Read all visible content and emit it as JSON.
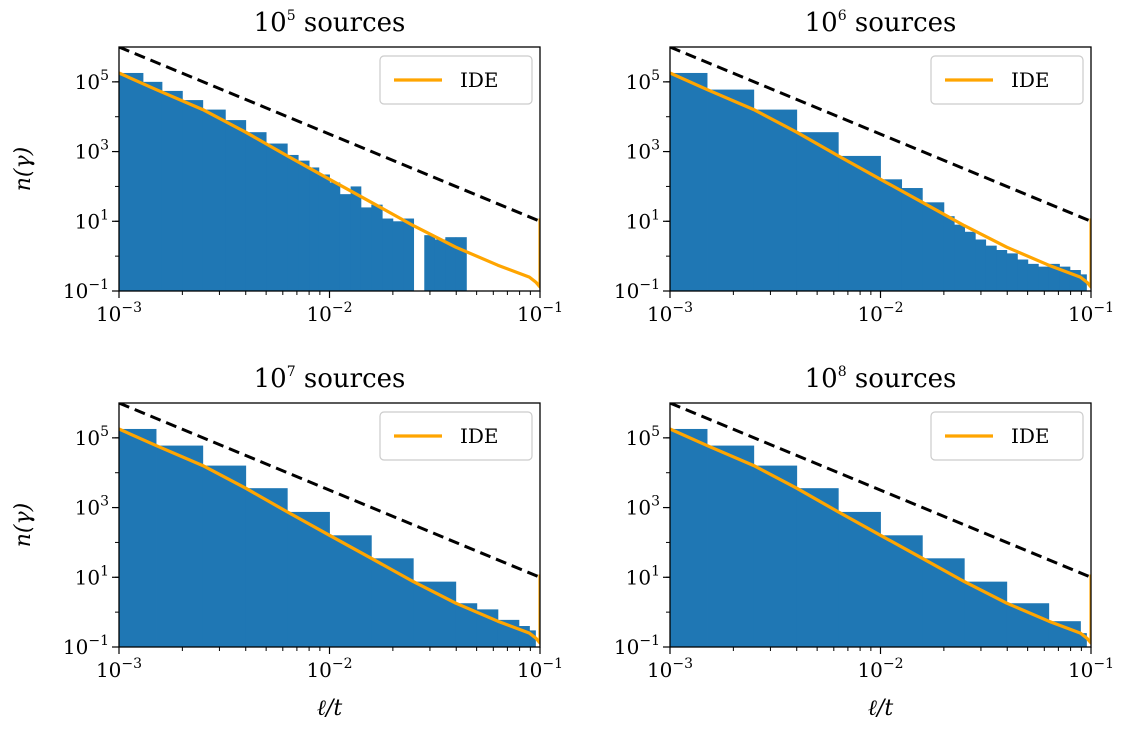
{
  "chart_data": [
    {
      "type": "bar",
      "title": "10^5 sources",
      "title_base": "10",
      "title_exp": "5",
      "title_suffix": "sources",
      "xlabel": "",
      "ylabel": "n(γ)",
      "xscale": "log",
      "yscale": "log",
      "xlim": [
        0.001,
        0.1
      ],
      "ylim": [
        0.1,
        1000000
      ],
      "legend": {
        "placement": "top-right",
        "entries": [
          "IDE"
        ]
      },
      "reference_line": {
        "style": "dashed",
        "color": "#000000",
        "x": [
          0.001,
          0.1
        ],
        "y": [
          1000000,
          10
        ]
      },
      "series": [
        {
          "name": "IDE",
          "kind": "line",
          "color": "#ffa500",
          "x": [
            0.001,
            0.0015,
            0.0025,
            0.004,
            0.0063,
            0.01,
            0.0158,
            0.025,
            0.0398,
            0.063,
            0.0891,
            0.0955,
            0.1,
            0.1
          ],
          "y": [
            180000,
            60000,
            16000,
            3600,
            750,
            160,
            35,
            7.5,
            1.8,
            0.55,
            0.25,
            0.18,
            0.13,
            12
          ]
        },
        {
          "name": "histogram",
          "kind": "bar",
          "color": "#1f77b4",
          "x": [
            0.001,
            0.0013,
            0.0016,
            0.002,
            0.0025,
            0.0032,
            0.004,
            0.005,
            0.0063,
            0.0071,
            0.008,
            0.0089,
            0.01,
            0.0112,
            0.0126,
            0.0141,
            0.0158,
            0.0178,
            0.02,
            0.0224,
            0.0251,
            0.0282,
            0.0316,
            0.0355,
            0.0398,
            0.0447
          ],
          "y": [
            180000,
            100000,
            55000,
            30000,
            16000,
            8000,
            3600,
            1700,
            800,
            550,
            350,
            220,
            130,
            60,
            100,
            25,
            30,
            12,
            10,
            12,
            0,
            4,
            3,
            3.5,
            3.5,
            0
          ]
        }
      ]
    },
    {
      "type": "bar",
      "title": "10^6 sources",
      "title_base": "10",
      "title_exp": "6",
      "title_suffix": "sources",
      "xlabel": "",
      "ylabel": "",
      "xscale": "log",
      "yscale": "log",
      "xlim": [
        0.001,
        0.1
      ],
      "ylim": [
        0.1,
        1000000
      ],
      "legend": {
        "placement": "top-right",
        "entries": [
          "IDE"
        ]
      },
      "reference_line": {
        "style": "dashed",
        "color": "#000000",
        "x": [
          0.001,
          0.1
        ],
        "y": [
          1000000,
          10
        ]
      },
      "series": [
        {
          "name": "IDE",
          "kind": "line",
          "color": "#ffa500",
          "x": [
            0.001,
            0.0015,
            0.0025,
            0.004,
            0.0063,
            0.01,
            0.0158,
            0.025,
            0.0398,
            0.063,
            0.0891,
            0.0955,
            0.1,
            0.1
          ],
          "y": [
            180000,
            60000,
            16000,
            3600,
            750,
            160,
            35,
            7.5,
            1.8,
            0.55,
            0.25,
            0.18,
            0.13,
            12
          ]
        },
        {
          "name": "histogram",
          "kind": "bar",
          "color": "#1f77b4",
          "x": [
            0.001,
            0.0015,
            0.0025,
            0.004,
            0.0063,
            0.01,
            0.0126,
            0.0158,
            0.02,
            0.0224,
            0.0251,
            0.0282,
            0.0316,
            0.0355,
            0.0398,
            0.0447,
            0.0501,
            0.0562,
            0.0631,
            0.0708,
            0.0794,
            0.0891
          ],
          "y": [
            180000,
            60000,
            16000,
            3600,
            750,
            160,
            90,
            35,
            14,
            8,
            5,
            3,
            2,
            1.5,
            1.2,
            0.8,
            0.6,
            0.5,
            0.6,
            0.5,
            0.4,
            0.3
          ]
        }
      ]
    },
    {
      "type": "bar",
      "title": "10^7 sources",
      "title_base": "10",
      "title_exp": "7",
      "title_suffix": "sources",
      "xlabel": "ℓ/t",
      "ylabel": "n(γ)",
      "xscale": "log",
      "yscale": "log",
      "xlim": [
        0.001,
        0.1
      ],
      "ylim": [
        0.1,
        1000000
      ],
      "legend": {
        "placement": "top-right",
        "entries": [
          "IDE"
        ]
      },
      "reference_line": {
        "style": "dashed",
        "color": "#000000",
        "x": [
          0.001,
          0.1
        ],
        "y": [
          1000000,
          10
        ]
      },
      "series": [
        {
          "name": "IDE",
          "kind": "line",
          "color": "#ffa500",
          "x": [
            0.001,
            0.0015,
            0.0025,
            0.004,
            0.0063,
            0.01,
            0.0158,
            0.025,
            0.0398,
            0.063,
            0.0891,
            0.0955,
            0.1,
            0.1
          ],
          "y": [
            180000,
            60000,
            16000,
            3600,
            750,
            160,
            35,
            7.5,
            1.8,
            0.55,
            0.25,
            0.18,
            0.13,
            12
          ]
        },
        {
          "name": "histogram",
          "kind": "bar",
          "color": "#1f77b4",
          "x": [
            0.001,
            0.0015,
            0.0025,
            0.004,
            0.0063,
            0.01,
            0.0158,
            0.025,
            0.0398,
            0.0501,
            0.0631,
            0.0794,
            0.0891
          ],
          "y": [
            180000,
            60000,
            16000,
            3600,
            750,
            160,
            35,
            7.5,
            1.8,
            1.2,
            0.6,
            0.4,
            0.3
          ]
        }
      ]
    },
    {
      "type": "bar",
      "title": "10^8 sources",
      "title_base": "10",
      "title_exp": "8",
      "title_suffix": "sources",
      "xlabel": "ℓ/t",
      "ylabel": "",
      "xscale": "log",
      "yscale": "log",
      "xlim": [
        0.001,
        0.1
      ],
      "ylim": [
        0.1,
        1000000
      ],
      "legend": {
        "placement": "top-right",
        "entries": [
          "IDE"
        ]
      },
      "reference_line": {
        "style": "dashed",
        "color": "#000000",
        "x": [
          0.001,
          0.1
        ],
        "y": [
          1000000,
          10
        ]
      },
      "series": [
        {
          "name": "IDE",
          "kind": "line",
          "color": "#ffa500",
          "x": [
            0.001,
            0.0015,
            0.0025,
            0.004,
            0.0063,
            0.01,
            0.0158,
            0.025,
            0.0398,
            0.063,
            0.0891,
            0.0955,
            0.1,
            0.1
          ],
          "y": [
            180000,
            60000,
            16000,
            3600,
            750,
            160,
            35,
            7.5,
            1.8,
            0.55,
            0.25,
            0.18,
            0.13,
            12
          ]
        },
        {
          "name": "histogram",
          "kind": "bar",
          "color": "#1f77b4",
          "x": [
            0.001,
            0.0015,
            0.0025,
            0.004,
            0.0063,
            0.01,
            0.0158,
            0.025,
            0.0398,
            0.063,
            0.0891
          ],
          "y": [
            180000,
            60000,
            16000,
            3600,
            750,
            160,
            35,
            7.5,
            1.8,
            0.55,
            0.25
          ]
        }
      ]
    }
  ],
  "axes": {
    "x_ticks": [
      {
        "base": "10",
        "exp": "−3",
        "value": 0.001
      },
      {
        "base": "10",
        "exp": "−2",
        "value": 0.01
      },
      {
        "base": "10",
        "exp": "−1",
        "value": 0.1
      }
    ],
    "y_ticks": [
      {
        "base": "10",
        "exp": "−1",
        "value": 0.1
      },
      {
        "base": "10",
        "exp": "1",
        "value": 10
      },
      {
        "base": "10",
        "exp": "3",
        "value": 1000
      },
      {
        "base": "10",
        "exp": "5",
        "value": 100000
      }
    ]
  },
  "colors": {
    "hist": "#1f77b4",
    "ide": "#ffa500",
    "dashed": "#000000",
    "legend_border": "#cccccc"
  }
}
